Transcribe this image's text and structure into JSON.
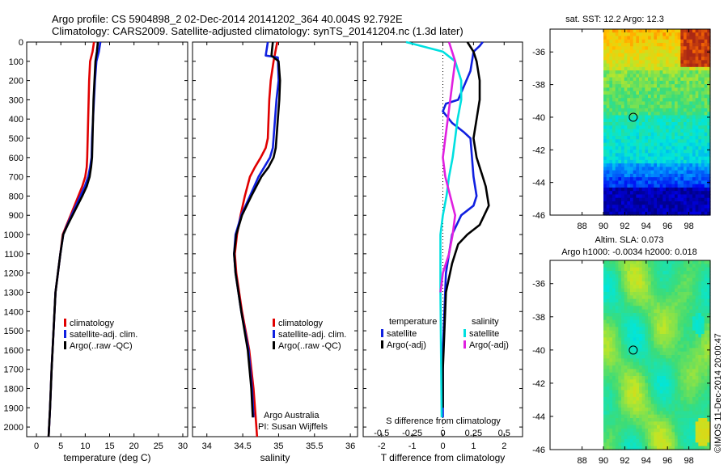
{
  "header": {
    "line1": "Argo profile: CS 5904898_2 02-Dec-2014 20141202_364 40.004S 92.792E",
    "line2": "Climatology: CARS2009. Satellite-adjusted climatology: synTS_20141204.nc (1.3d later)"
  },
  "credit": {
    "org": "Argo Australia",
    "pi": "PI: Susan Wijffels",
    "stamp": "©IMOS 11-Dec-2014 20:00:47"
  },
  "colors": {
    "climatology": "#e00000",
    "satellite": "#1020e0",
    "argo": "#000000",
    "sat_salinity": "#00e0e0",
    "argo_salinity": "#e020e0"
  },
  "chart_data": [
    {
      "type": "line",
      "id": "temperature",
      "xlabel": "temperature (deg C)",
      "xlim": [
        -2,
        31
      ],
      "xticks": [
        "0",
        "5",
        "10",
        "15",
        "20",
        "25",
        "30"
      ],
      "ylim": [
        0,
        2050
      ],
      "yticks": [
        "0",
        "100",
        "200",
        "300",
        "400",
        "500",
        "600",
        "700",
        "800",
        "900",
        "1000",
        "1100",
        "1200",
        "1300",
        "1400",
        "1500",
        "1600",
        "1700",
        "1800",
        "1900",
        "2000"
      ],
      "legend": [
        "climatology",
        "satellite-adj. clim.",
        "Argo(..raw -QC)"
      ],
      "series": [
        {
          "name": "climatology",
          "color": "#e00000",
          "x": [
            11.8,
            11.5,
            11.0,
            10.8,
            10.7,
            10.6,
            10.5,
            10.4,
            10.3,
            10.0,
            9.4,
            8.6,
            7.8,
            7.0,
            6.2,
            5.4,
            4.9,
            4.4,
            3.9,
            3.5,
            3.1,
            2.8,
            2.5
          ],
          "y": [
            0,
            50,
            100,
            200,
            300,
            400,
            500,
            600,
            650,
            700,
            750,
            800,
            850,
            900,
            950,
            1000,
            1100,
            1200,
            1300,
            1500,
            1700,
            1900,
            2050
          ]
        },
        {
          "name": "satellite-adj. clim.",
          "color": "#1020e0",
          "x": [
            13.1,
            12.8,
            12.3,
            12.0,
            11.8,
            11.6,
            11.4,
            11.3,
            11.0,
            10.6,
            9.9,
            9.0,
            8.1,
            7.2,
            6.3,
            5.5,
            4.9,
            4.4,
            3.9,
            3.5,
            3.1,
            2.8,
            2.5
          ],
          "y": [
            0,
            50,
            100,
            200,
            300,
            400,
            500,
            600,
            650,
            700,
            750,
            800,
            850,
            900,
            950,
            1000,
            1100,
            1200,
            1300,
            1500,
            1700,
            1900,
            2050
          ]
        },
        {
          "name": "Argo(..raw -QC)",
          "color": "#000000",
          "x": [
            12.6,
            12.4,
            12.1,
            11.9,
            11.7,
            11.6,
            11.5,
            11.4,
            11.2,
            10.9,
            10.3,
            9.4,
            8.4,
            7.4,
            6.4,
            5.5,
            4.9,
            4.4,
            3.9,
            3.5,
            3.1,
            2.8,
            2.5
          ],
          "y": [
            0,
            50,
            100,
            200,
            300,
            400,
            500,
            600,
            650,
            700,
            750,
            800,
            850,
            900,
            950,
            1000,
            1100,
            1200,
            1300,
            1500,
            1700,
            1900,
            2050
          ]
        }
      ]
    },
    {
      "type": "line",
      "id": "salinity",
      "xlabel": "salinity",
      "xlim": [
        33.8,
        36.1
      ],
      "xticks": [
        "34",
        "34.5",
        "35",
        "35.5",
        "36"
      ],
      "ylim": [
        0,
        2050
      ],
      "legend": [
        "climatology",
        "satellite-adj. clim.",
        "Argo(..raw -QC)"
      ],
      "series": [
        {
          "name": "climatology",
          "color": "#e00000",
          "x": [
            34.98,
            34.93,
            34.89,
            34.87,
            34.86,
            34.85,
            34.82,
            34.75,
            34.67,
            34.6,
            34.53,
            34.47,
            34.42,
            34.39,
            34.41,
            34.49,
            34.59,
            34.65,
            34.68,
            34.7
          ],
          "y": [
            0,
            100,
            200,
            300,
            400,
            500,
            550,
            600,
            650,
            700,
            800,
            900,
            1000,
            1100,
            1200,
            1400,
            1600,
            1800,
            1950,
            2050
          ]
        },
        {
          "name": "satellite-adj. clim.",
          "color": "#1020e0",
          "x": [
            34.85,
            34.82,
            34.99,
            35.0,
            34.97,
            34.95,
            34.93,
            34.92,
            34.88,
            34.8,
            34.72,
            34.6,
            34.48,
            34.4,
            34.38,
            34.4,
            34.48,
            34.58,
            34.63,
            34.65
          ],
          "y": [
            0,
            70,
            80,
            200,
            300,
            400,
            500,
            550,
            600,
            650,
            700,
            800,
            900,
            1000,
            1100,
            1200,
            1400,
            1600,
            1800,
            1950
          ]
        },
        {
          "name": "Argo(..raw -QC)",
          "color": "#000000",
          "x": [
            34.92,
            34.9,
            35.0,
            35.02,
            35.01,
            34.99,
            34.97,
            34.96,
            34.93,
            34.86,
            34.76,
            34.62,
            34.49,
            34.41,
            34.38,
            34.4,
            34.48,
            34.57,
            34.62,
            34.64
          ],
          "y": [
            0,
            70,
            100,
            200,
            300,
            400,
            500,
            550,
            600,
            650,
            700,
            800,
            900,
            1000,
            1100,
            1200,
            1400,
            1600,
            1800,
            1950
          ]
        }
      ],
      "annotations": [
        "Argo Australia",
        "PI: Susan Wijffels"
      ]
    },
    {
      "type": "line",
      "id": "differences",
      "xlabel": "T difference from climatology",
      "xlabel_top": "S difference from climatology",
      "xlim": [
        -2.6,
        2.6
      ],
      "xticks": [
        "-2",
        "-1",
        "0",
        "1",
        "2"
      ],
      "xticks_s": [
        "-0.5",
        "-0.25",
        "0",
        "0.25",
        "0.5"
      ],
      "ylim": [
        0,
        2050
      ],
      "legend_temperature_title": "temperature",
      "legend_salinity_title": "salinity",
      "legend": [
        "satellite",
        "Argo(-adj)",
        "satellite",
        "Argo(-adj)"
      ],
      "series": [
        {
          "name": "satellite",
          "quantity": "temperature",
          "color": "#1020e0",
          "x": [
            1.3,
            1.2,
            1.0,
            0.9,
            0.5,
            0.1,
            0.0,
            0.3,
            0.7,
            0.9,
            0.95,
            1.0,
            1.05,
            1.1,
            1.0,
            0.6,
            0.3,
            0.1,
            0.05,
            0.0,
            0.0,
            0.0
          ],
          "y": [
            0,
            20,
            50,
            150,
            300,
            320,
            360,
            420,
            470,
            500,
            600,
            700,
            750,
            800,
            850,
            900,
            1000,
            1200,
            1400,
            1600,
            1800,
            1950
          ]
        },
        {
          "name": "Argo(-adj)",
          "quantity": "temperature",
          "color": "#000000",
          "x": [
            0.8,
            1.0,
            1.1,
            1.2,
            1.2,
            1.1,
            1.0,
            1.1,
            1.2,
            1.3,
            1.4,
            1.5,
            1.2,
            0.8,
            0.5,
            0.3,
            0.1,
            0.05,
            0.0,
            0.0
          ],
          "y": [
            0,
            50,
            100,
            200,
            300,
            400,
            500,
            600,
            650,
            700,
            750,
            850,
            950,
            1000,
            1050,
            1150,
            1300,
            1500,
            1700,
            1900
          ]
        },
        {
          "name": "satellite",
          "quantity": "salinity",
          "color": "#00e0e0",
          "x": [
            -0.3,
            0.0,
            0.1,
            0.15,
            0.15,
            0.12,
            0.1,
            0.08,
            0.05,
            0.03,
            0.0,
            -0.02,
            -0.02,
            -0.01
          ],
          "y": [
            0,
            50,
            100,
            200,
            300,
            400,
            500,
            600,
            700,
            800,
            900,
            1000,
            1300,
            1950
          ]
        },
        {
          "name": "Argo(-adj)",
          "quantity": "salinity",
          "color": "#e020e0",
          "x": [
            0.05,
            0.1,
            0.08,
            0.06,
            0.04,
            0.02,
            0.0,
            0.02,
            0.06,
            0.1,
            0.08,
            0.05,
            0.0,
            -0.02
          ],
          "y": [
            0,
            100,
            200,
            300,
            400,
            500,
            600,
            700,
            800,
            900,
            1000,
            1100,
            1200,
            1300
          ]
        }
      ]
    },
    {
      "type": "heatmap",
      "id": "sst_map",
      "title": "sat. SST: 12.2  Argo: 12.3",
      "xlim": [
        85,
        100
      ],
      "ylim": [
        -46,
        -34.6
      ],
      "xticks": [
        "88",
        "90",
        "92",
        "94",
        "96",
        "98"
      ],
      "yticks": [
        "-36",
        "-38",
        "-40",
        "-42",
        "-44",
        "-46"
      ],
      "profile_marker": {
        "lon": 92.792,
        "lat": -40.004
      }
    },
    {
      "type": "heatmap",
      "id": "sla_map",
      "title": "Altim. SLA: 0.073",
      "subtitle": "Argo h1000: -0.0034 h2000: 0.018",
      "xlim": [
        85,
        100
      ],
      "ylim": [
        -46,
        -34.6
      ],
      "xticks": [
        "88",
        "90",
        "92",
        "94",
        "96",
        "98"
      ],
      "yticks": [
        "-36",
        "-38",
        "-40",
        "-42",
        "-44",
        "-46"
      ],
      "profile_marker": {
        "lon": 92.792,
        "lat": -40.004
      }
    }
  ]
}
